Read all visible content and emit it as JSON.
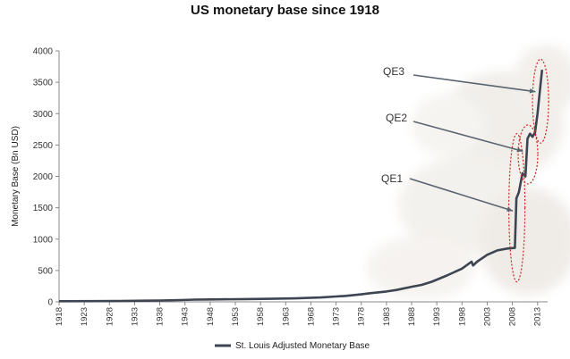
{
  "chart_data": {
    "type": "line",
    "title": "US monetary base since 1918",
    "xlabel": "",
    "ylabel": "Monetary Base (Bn USD)",
    "xlim": [
      1918,
      2015
    ],
    "ylim": [
      0,
      4000
    ],
    "yticks": [
      "0",
      "500",
      "1000",
      "1500",
      "2000",
      "2500",
      "3000",
      "3500",
      "4000"
    ],
    "xticks": [
      "1918",
      "1923",
      "1928",
      "1933",
      "1938",
      "1943",
      "1948",
      "1953",
      "1958",
      "1963",
      "1968",
      "1973",
      "1978",
      "1983",
      "1988",
      "1993",
      "1998",
      "2003",
      "2008",
      "2013"
    ],
    "grid": false,
    "legend": "bottom",
    "series": [
      {
        "name": "St. Louis Adjusted Monetary Base",
        "color": "#3d4552",
        "x": [
          1918,
          1925,
          1930,
          1935,
          1938,
          1942,
          1945,
          1948,
          1950,
          1955,
          1960,
          1965,
          1970,
          1973,
          1975,
          1978,
          1980,
          1983,
          1985,
          1988,
          1990,
          1992,
          1995,
          1998,
          1999.9,
          2000.2,
          2001,
          2003,
          2005,
          2007,
          2008.5,
          2008.8,
          2009.3,
          2010,
          2010.6,
          2011,
          2011.5,
          2012,
          2012.5,
          2013,
          2013.5,
          2013.9
        ],
        "y": [
          10,
          12,
          14,
          18,
          22,
          28,
          35,
          38,
          40,
          44,
          48,
          55,
          70,
          85,
          95,
          120,
          140,
          165,
          190,
          240,
          270,
          320,
          420,
          530,
          640,
          580,
          640,
          750,
          820,
          850,
          860,
          1650,
          1750,
          2050,
          2000,
          2600,
          2680,
          2630,
          2700,
          3000,
          3400,
          3700
        ]
      }
    ],
    "annotations": [
      {
        "text": "QE1",
        "x": 2008.8,
        "y": 1450
      },
      {
        "text": "QE2",
        "x": 2010.8,
        "y": 2400
      },
      {
        "text": "QE3",
        "x": 2013.3,
        "y": 3350
      }
    ]
  }
}
